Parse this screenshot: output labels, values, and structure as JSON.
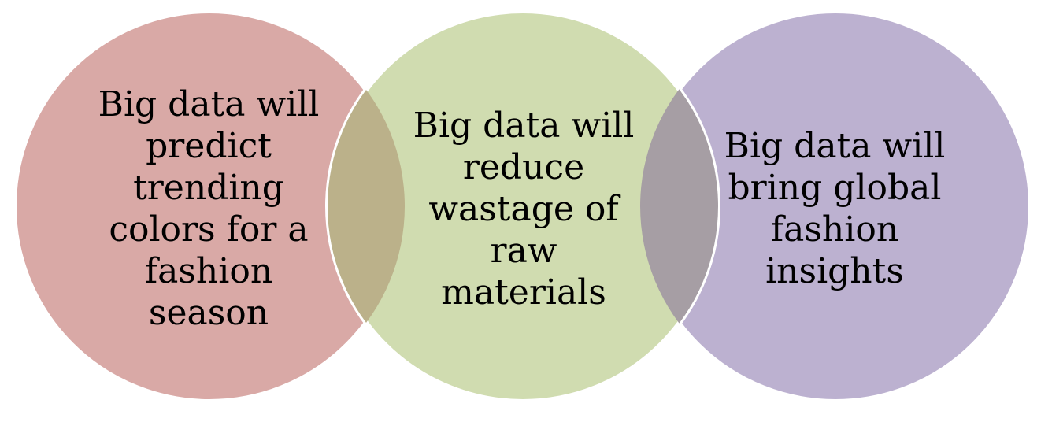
{
  "diagram": {
    "circles": [
      {
        "text": "Big data will\npredict\ntrending\ncolors for a\nfashion\nseason",
        "fill": "#d9a9a6"
      },
      {
        "text": "Big data will\nreduce\nwastage of\nraw\nmaterials",
        "fill": "#d0dcb0"
      },
      {
        "text": "Big data will\nbring global\nfashion\ninsights",
        "fill": "#bcb1d0"
      }
    ],
    "overlaps": [
      {
        "fill": "#bbb18a"
      },
      {
        "fill": "#a69ea4"
      }
    ],
    "outline_color": "#ffffff"
  }
}
